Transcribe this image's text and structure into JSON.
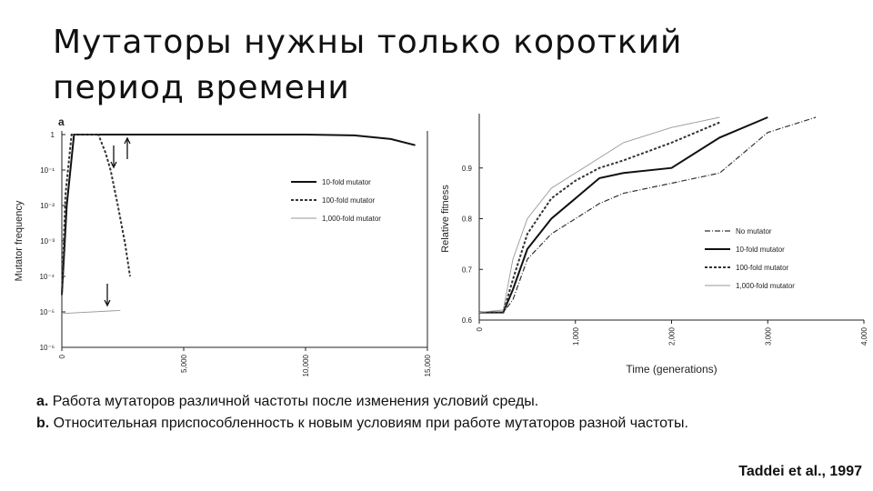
{
  "title": "Мутаторы нужны только короткий период времени",
  "chart_data": [
    {
      "type": "line",
      "panel": "a",
      "y_label": "Mutator frequency",
      "yscale": "log",
      "xlim": [
        0,
        15000
      ],
      "xticks": [
        0,
        {
          "value": 5000,
          "label": "5,000"
        },
        {
          "value": 10000,
          "label": "10,000"
        },
        {
          "value": 15000,
          "label": "15,000"
        }
      ],
      "ylim": [
        1e-06,
        1
      ],
      "yticks": [
        {
          "value": 1,
          "label": "1"
        },
        {
          "value": 0.1,
          "label": "10⁻¹"
        },
        {
          "value": 0.01,
          "label": "10⁻²"
        },
        {
          "value": 0.001,
          "label": "10⁻³"
        },
        {
          "value": 0.0001,
          "label": "10⁻⁴"
        },
        {
          "value": 1e-05,
          "label": "10⁻⁵"
        },
        {
          "value": 1e-06,
          "label": "10⁻⁶"
        }
      ],
      "legend": "upper-right",
      "series": [
        {
          "name": "10-fold mutator",
          "color": "#111111",
          "style": "solid",
          "x": [
            0,
            200,
            500,
            1000,
            5000,
            10000,
            12000,
            13500,
            14500
          ],
          "values": [
            3e-05,
            0.01,
            1,
            1,
            1,
            1,
            0.95,
            0.75,
            0.5
          ]
        },
        {
          "name": "100-fold mutator",
          "color": "#333333",
          "style": "dotted",
          "x": [
            0,
            150,
            400,
            1500,
            1800,
            2000,
            2300,
            2600,
            2800
          ],
          "values": [
            3e-05,
            0.02,
            1,
            1,
            0.3,
            0.1,
            0.01,
            0.0008,
            0.0001
          ]
        },
        {
          "name": "1,000-fold mutator",
          "color": "#999999",
          "style": "thin",
          "x": [
            0,
            2400
          ],
          "values": [
            9e-06,
            1.1e-05
          ]
        }
      ]
    },
    {
      "type": "line",
      "x_label": "Time (generations)",
      "y_label": "Relative fitness",
      "xlim": [
        0,
        4000
      ],
      "xticks": [
        0,
        {
          "value": 1000,
          "label": "1,000"
        },
        {
          "value": 2000,
          "label": "2,000"
        },
        {
          "value": 3000,
          "label": "3,000"
        },
        {
          "value": 4000,
          "label": "4,000"
        }
      ],
      "ylim": [
        0.6,
        1.0
      ],
      "yticks": [
        0.6,
        0.7,
        0.8,
        0.9
      ],
      "legend": "lower-right",
      "x": [
        0,
        250,
        350,
        500,
        750,
        1000,
        1250,
        1500,
        2000,
        2500,
        3000,
        3500
      ],
      "series": [
        {
          "name": "No mutator",
          "color": "#333333",
          "style": "dashdot",
          "values": [
            0.615,
            0.615,
            0.64,
            0.72,
            0.77,
            0.8,
            0.83,
            0.85,
            0.87,
            0.89,
            0.97,
            1.0
          ]
        },
        {
          "name": "10-fold mutator",
          "color": "#111111",
          "style": "solid",
          "values": [
            0.615,
            0.615,
            0.66,
            0.74,
            0.8,
            0.84,
            0.88,
            0.89,
            0.9,
            0.96,
            1.0,
            null
          ]
        },
        {
          "name": "100-fold mutator",
          "color": "#333333",
          "style": "dotted",
          "values": [
            0.615,
            0.615,
            0.68,
            0.77,
            0.84,
            0.875,
            0.9,
            0.915,
            0.95,
            0.99,
            null,
            null
          ]
        },
        {
          "name": "1,000-fold mutator",
          "color": "#999999",
          "style": "thin",
          "values": [
            0.615,
            0.62,
            0.72,
            0.8,
            0.86,
            0.89,
            0.92,
            0.95,
            0.98,
            1.0,
            null,
            null
          ]
        }
      ]
    }
  ],
  "caption": [
    {
      "label": "a.",
      "text": "Работа мутаторов различной частоты после изменения условий среды."
    },
    {
      "label": "b.",
      "text": "Относительная приспособленность к новым условиям при работе мутаторов разной частоты."
    }
  ],
  "citation": "Taddei et al., 1997"
}
